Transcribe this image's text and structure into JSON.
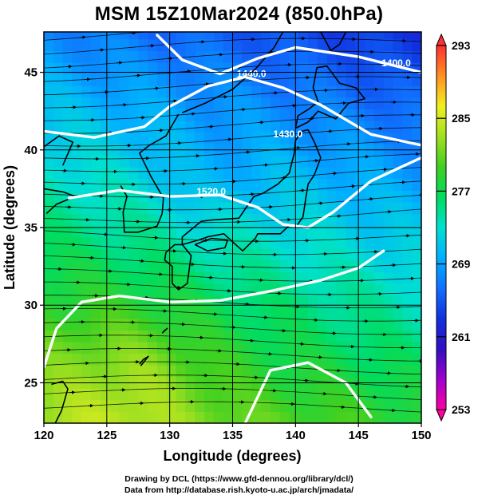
{
  "title": "MSM 15Z10Mar2024 (850.0hPa)",
  "map": {
    "xlabel": "Longitude (degrees)",
    "ylabel": "Latitude  (degrees)",
    "xlim": [
      120,
      150
    ],
    "ylim": [
      22.4,
      47.6
    ],
    "x_ticks": [
      "120",
      "125",
      "130",
      "135",
      "140",
      "145",
      "150"
    ],
    "y_ticks": [
      "25",
      "30",
      "35",
      "40",
      "45"
    ],
    "grid": true,
    "field": "temperature (shaded) with streamlines and white height contours",
    "contours": [
      {
        "label": "1440.0",
        "lon": 136.5,
        "lat": 44.7
      },
      {
        "label": "1430.0",
        "lon": 139.4,
        "lat": 40.8
      },
      {
        "label": "1400.0",
        "lon": 148.0,
        "lat": 45.4
      },
      {
        "label": "1520.0",
        "lon": 133.3,
        "lat": 37.1
      }
    ]
  },
  "colorbar": {
    "min": 253,
    "max": 293,
    "tick_labels": [
      "293",
      "285",
      "277",
      "269",
      "261",
      "253"
    ],
    "colors": [
      "#ff00a0",
      "#a000d0",
      "#3010c0",
      "#1030e0",
      "#1070ff",
      "#00b0ff",
      "#00e0d0",
      "#00dc60",
      "#40d020",
      "#a0e020",
      "#f0f020",
      "#ff9020",
      "#ff3030"
    ]
  },
  "credits": {
    "line1": "Drawing by DCL (https://www.gfd-dennou.org/library/dcl/)",
    "line2": "Data from http://database.rish.kyoto-u.ac.jp/arch/jmadata/"
  }
}
